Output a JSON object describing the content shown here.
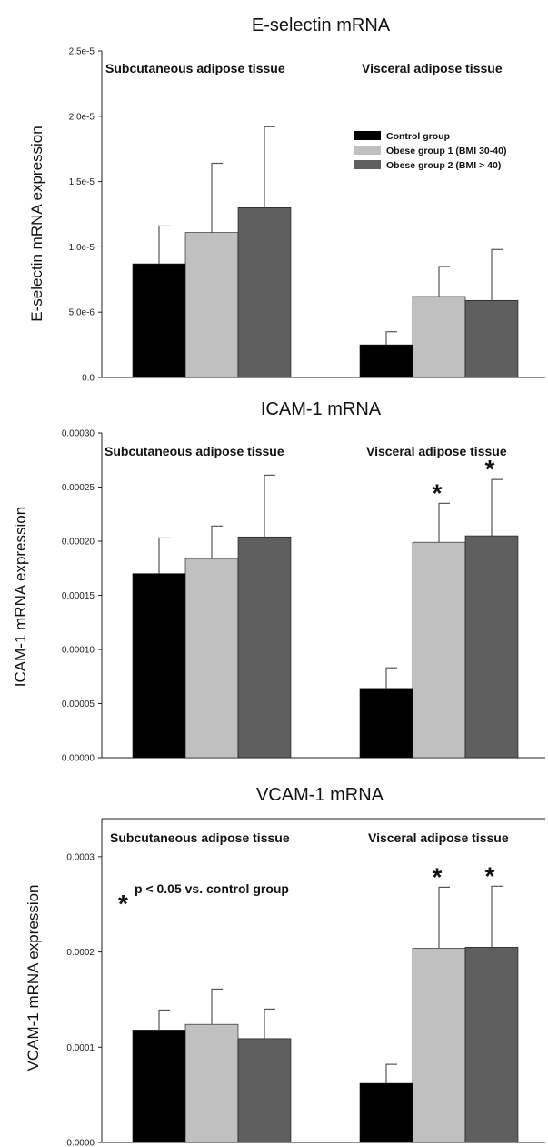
{
  "colors": {
    "control": "#000000",
    "obese1": "#c0c0c0",
    "obese2": "#5f5f5f"
  },
  "legend": {
    "placement": "top-right of first panel",
    "entries": [
      "Control group",
      "Obese group 1 (BMI 30-40)",
      "Obese group 2 (BMI > 40)"
    ]
  },
  "note": "p < 0.05 vs. control group",
  "chart_data": [
    {
      "type": "bar",
      "title": "E-selectin mRNA",
      "ylabel": "E-selectin mRNA expression",
      "xlabel": "",
      "ylim": [
        0,
        2.5e-05
      ],
      "ticks": [
        0,
        5e-06,
        1e-05,
        1.5e-05,
        2e-05,
        2.5e-05
      ],
      "tick_labels": [
        "0.0",
        "5.0e-6",
        "1.0e-5",
        "1.5e-5",
        "2.0e-5",
        "2.5e-5"
      ],
      "categories": [
        "Subcutaneous adipose tissue",
        "Visceral adipose tissue"
      ],
      "series": [
        {
          "name": "Control group",
          "values": [
            8.7e-06,
            2.5e-06
          ],
          "errors": [
            2.9e-06,
            1e-06
          ],
          "significant": [
            false,
            false
          ]
        },
        {
          "name": "Obese group 1 (BMI 30-40)",
          "values": [
            1.11e-05,
            6.2e-06
          ],
          "errors": [
            5.3e-06,
            2.3e-06
          ],
          "significant": [
            false,
            false
          ]
        },
        {
          "name": "Obese group 2 (BMI > 40)",
          "values": [
            1.3e-05,
            5.9e-06
          ],
          "errors": [
            6.2e-06,
            3.9e-06
          ],
          "significant": [
            false,
            false
          ]
        }
      ],
      "grid": false,
      "legend": true
    },
    {
      "type": "bar",
      "title": "ICAM-1 mRNA",
      "ylabel": "ICAM-1 mRNA expression",
      "xlabel": "",
      "ylim": [
        0,
        0.0003
      ],
      "ticks": [
        0,
        5e-05,
        0.0001,
        0.00015,
        0.0002,
        0.00025,
        0.0003
      ],
      "tick_labels": [
        "0.00000",
        "0.00005",
        "0.00010",
        "0.00015",
        "0.00020",
        "0.00025",
        "0.00030"
      ],
      "categories": [
        "Subcutaneous adipose tissue",
        "Visceral adipose tissue"
      ],
      "series": [
        {
          "name": "Control group",
          "values": [
            0.00017,
            6.4e-05
          ],
          "errors": [
            3.3e-05,
            1.9e-05
          ],
          "significant": [
            false,
            false
          ]
        },
        {
          "name": "Obese group 1 (BMI 30-40)",
          "values": [
            0.000184,
            0.000199
          ],
          "errors": [
            3e-05,
            3.6e-05
          ],
          "significant": [
            false,
            true
          ]
        },
        {
          "name": "Obese group 2 (BMI > 40)",
          "values": [
            0.000204,
            0.000205
          ],
          "errors": [
            5.7e-05,
            5.2e-05
          ],
          "significant": [
            false,
            true
          ]
        }
      ],
      "grid": false,
      "legend": false
    },
    {
      "type": "bar",
      "title": "VCAM-1 mRNA",
      "ylabel": "VCAM-1 mRNA expression",
      "xlabel": "",
      "ylim": [
        0,
        0.00034
      ],
      "ticks": [
        0,
        0.0001,
        0.0002,
        0.0003
      ],
      "tick_labels": [
        "0.0000",
        "0.0001",
        "0.0002",
        "0.0003"
      ],
      "categories": [
        "Subcutaneous adipose tissue",
        "Visceral adipose tissue"
      ],
      "series": [
        {
          "name": "Control group",
          "values": [
            0.000118,
            6.2e-05
          ],
          "errors": [
            2.1e-05,
            2e-05
          ],
          "significant": [
            false,
            false
          ]
        },
        {
          "name": "Obese group 1 (BMI 30-40)",
          "values": [
            0.000124,
            0.000204
          ],
          "errors": [
            3.7e-05,
            6.4e-05
          ],
          "significant": [
            false,
            true
          ]
        },
        {
          "name": "Obese group 2 (BMI > 40)",
          "values": [
            0.000109,
            0.000205
          ],
          "errors": [
            3.1e-05,
            6.4e-05
          ],
          "significant": [
            false,
            true
          ]
        }
      ],
      "grid": false,
      "legend": false
    }
  ]
}
